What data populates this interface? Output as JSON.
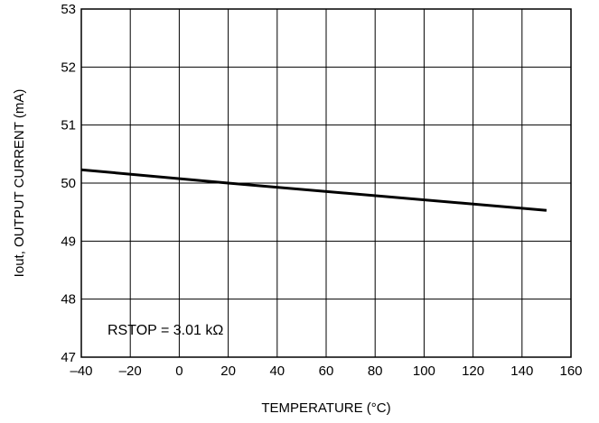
{
  "chart_data": {
    "type": "line",
    "title": "",
    "xlabel": "TEMPERATURE (°C)",
    "ylabel": "Iout, OUTPUT CURRENT (mA)",
    "xlim": [
      -40,
      160
    ],
    "ylim": [
      47,
      53
    ],
    "x_ticks": [
      -40,
      -20,
      0,
      20,
      40,
      60,
      80,
      100,
      120,
      140,
      160
    ],
    "y_ticks": [
      47,
      48,
      49,
      50,
      51,
      52,
      53
    ],
    "x_tick_labels": [
      "–40",
      "–20",
      "0",
      "20",
      "40",
      "60",
      "80",
      "100",
      "120",
      "140",
      "160"
    ],
    "y_tick_labels": [
      "47",
      "48",
      "49",
      "50",
      "51",
      "52",
      "53"
    ],
    "grid": true,
    "annotation": "RSTOP = 3.01 kΩ",
    "series": [
      {
        "x": [
          -40,
          20,
          150
        ],
        "y": [
          50.23,
          50.0,
          49.53
        ]
      }
    ]
  }
}
